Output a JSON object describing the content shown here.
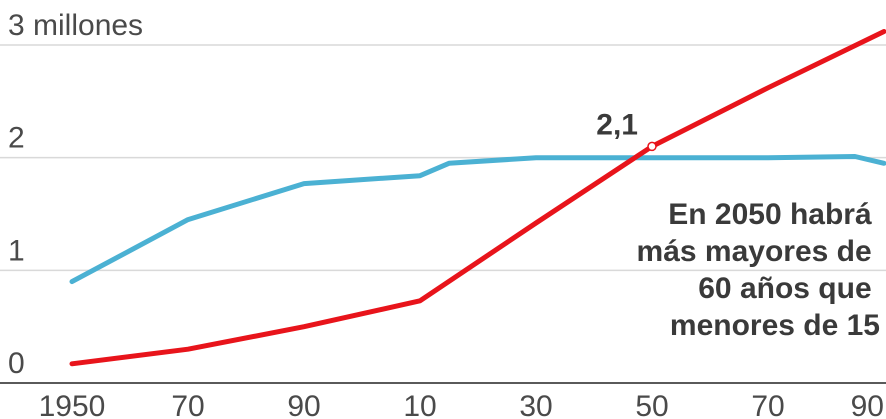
{
  "chart_data": {
    "type": "line",
    "title": "",
    "xlabel": "",
    "ylabel": "",
    "x": [
      1950,
      1970,
      1990,
      2010,
      2015,
      2030,
      2050,
      2070,
      2085,
      2090
    ],
    "xlim": [
      1950,
      2090
    ],
    "ylim": [
      0,
      3
    ],
    "yticks": [
      0,
      1,
      2,
      3
    ],
    "ytick_labels": [
      "0",
      "1",
      "2",
      "3 millones"
    ],
    "xticks": [
      1950,
      1970,
      1990,
      2010,
      2030,
      2050,
      2070,
      2090
    ],
    "xtick_labels": [
      "1950",
      "70",
      "90",
      "10",
      "30",
      "50",
      "70",
      "90"
    ],
    "grid": true,
    "series": [
      {
        "color": "#4bb1d3",
        "points": [
          {
            "x": 1950,
            "y": 0.9
          },
          {
            "x": 1970,
            "y": 1.45
          },
          {
            "x": 1990,
            "y": 1.77
          },
          {
            "x": 2010,
            "y": 1.84
          },
          {
            "x": 2015,
            "y": 1.95
          },
          {
            "x": 2030,
            "y": 2.0
          },
          {
            "x": 2050,
            "y": 2.0
          },
          {
            "x": 2070,
            "y": 2.0
          },
          {
            "x": 2085,
            "y": 2.01
          },
          {
            "x": 2090,
            "y": 1.95
          }
        ]
      },
      {
        "color": "#e8141b",
        "points": [
          {
            "x": 1950,
            "y": 0.17
          },
          {
            "x": 1970,
            "y": 0.3
          },
          {
            "x": 1990,
            "y": 0.5
          },
          {
            "x": 2010,
            "y": 0.73
          },
          {
            "x": 2030,
            "y": 1.42
          },
          {
            "x": 2050,
            "y": 2.1
          },
          {
            "x": 2070,
            "y": 2.62
          },
          {
            "x": 2090,
            "y": 3.12
          }
        ]
      }
    ],
    "point_label": {
      "x": 2050,
      "y": 2.1,
      "text": "2,1"
    },
    "annotation": [
      "En 2050 habrá",
      "más mayores de",
      "60 años que",
      "menores de 15"
    ]
  }
}
